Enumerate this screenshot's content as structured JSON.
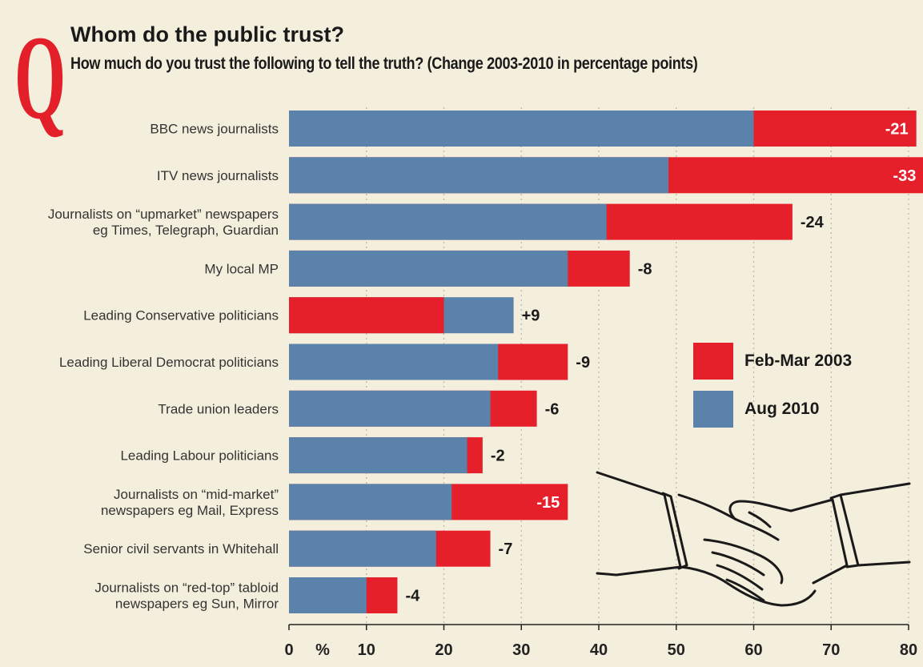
{
  "header": {
    "q_letter": "Q",
    "title": "Whom do the public trust?",
    "subtitle": "How much do you trust the following to tell the truth? (Change 2003-2010 in percentage points)"
  },
  "legend": {
    "items": [
      {
        "label": "Feb-Mar 2003",
        "color": "#e5202a"
      },
      {
        "label": "Aug 2010",
        "color": "#5b82aa"
      }
    ]
  },
  "chart_data": {
    "type": "bar",
    "orientation": "horizontal",
    "xlim": [
      0,
      80
    ],
    "xticks": [
      0,
      10,
      20,
      30,
      40,
      50,
      60,
      70,
      80
    ],
    "x_unit_label": "%",
    "grid": true,
    "legend_position": "right",
    "categories": [
      [
        "BBC news journalists"
      ],
      [
        "ITV news journalists"
      ],
      [
        "Journalists on “upmarket” newspapers",
        "eg Times, Telegraph, Guardian"
      ],
      [
        "My local MP"
      ],
      [
        "Leading Conservative politicians"
      ],
      [
        "Leading Liberal Democrat politicians"
      ],
      [
        "Trade union leaders"
      ],
      [
        "Leading Labour politicians"
      ],
      [
        "Journalists on “mid-market”",
        "newspapers eg Mail, Express"
      ],
      [
        "Senior civil servants in Whitehall"
      ],
      [
        "Journalists on “red-top” tabloid",
        "newspapers eg Sun, Mirror"
      ]
    ],
    "series": [
      {
        "name": "Feb-Mar 2003",
        "color": "#e5202a",
        "values": [
          81,
          82,
          65,
          44,
          20,
          36,
          32,
          25,
          36,
          26,
          14
        ]
      },
      {
        "name": "Aug 2010",
        "color": "#5b82aa",
        "values": [
          60,
          49,
          41,
          36,
          29,
          27,
          26,
          23,
          21,
          19,
          10
        ]
      }
    ],
    "change_labels": [
      "-21",
      "-33",
      "-24",
      "-8",
      "+9",
      "-9",
      "-6",
      "-2",
      "-15",
      "-7",
      "-4"
    ],
    "change_label_inside": [
      true,
      true,
      false,
      false,
      false,
      false,
      false,
      false,
      true,
      false,
      false
    ]
  }
}
